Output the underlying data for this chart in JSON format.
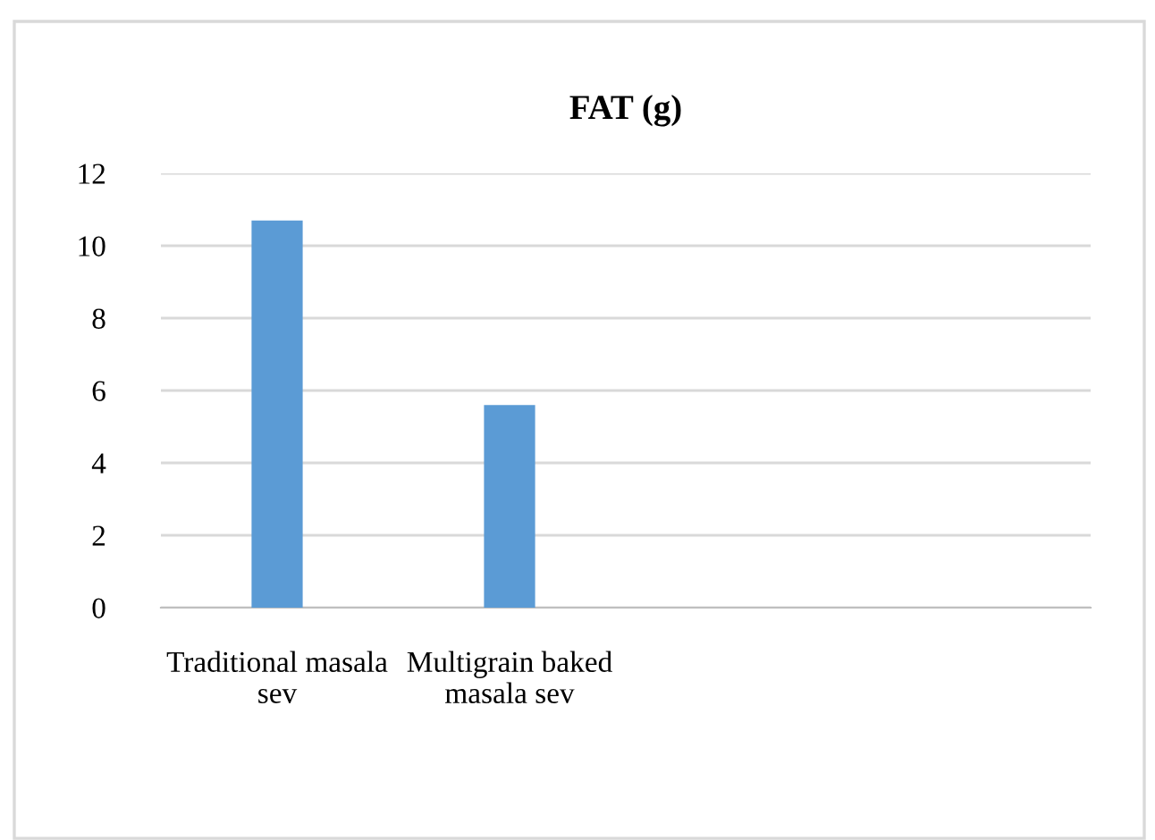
{
  "chart_data": {
    "type": "bar",
    "title": "FAT (g)",
    "categories": [
      "Traditional masala sev",
      "Multigrain baked masala sev",
      null,
      null
    ],
    "values": [
      10.7,
      5.6,
      null,
      null
    ],
    "color": "#5b9bd5",
    "ylim": [
      0,
      12
    ],
    "yticks": [
      0,
      2,
      4,
      6,
      8,
      10,
      12
    ],
    "grid": "y"
  }
}
